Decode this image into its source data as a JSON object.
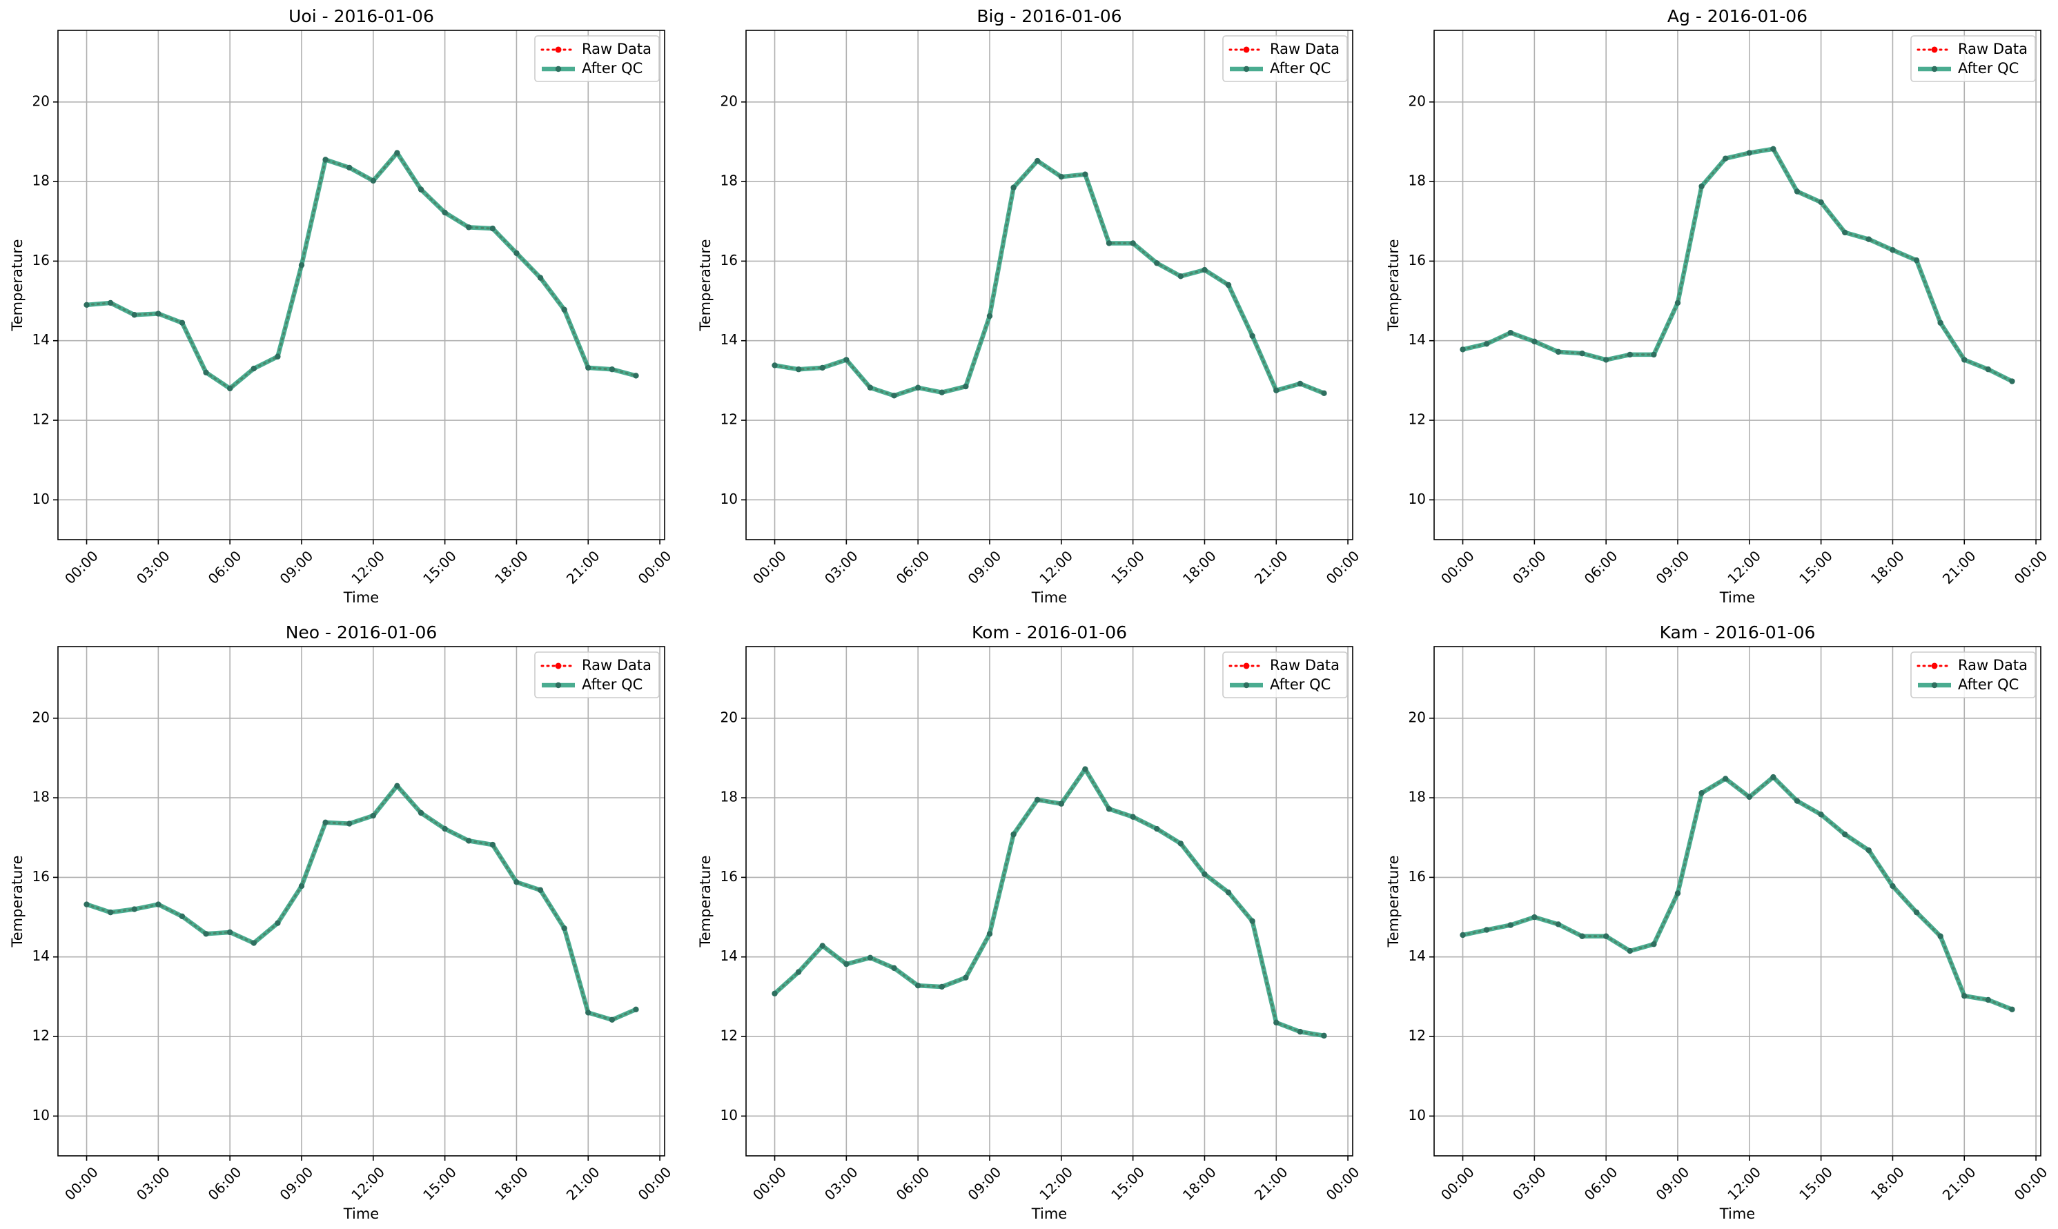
{
  "colors": {
    "raw": "#ff0000",
    "qc": "#2a9d7c",
    "qc_marker": "#2e6f5f",
    "grid": "#b0b0b0",
    "axes": "#000000",
    "legend_frame": "#cccccc"
  },
  "legend_placement": "upper right",
  "chart_data": [
    {
      "type": "line",
      "title": "Uoi - 2016-01-06",
      "xlabel": "Time",
      "ylabel": "Temperature",
      "xticks": [
        "00:00",
        "03:00",
        "06:00",
        "09:00",
        "12:00",
        "15:00",
        "18:00",
        "21:00",
        "00:00"
      ],
      "yticks": [
        "10",
        "12",
        "14",
        "16",
        "18",
        "20"
      ],
      "xlim_hours": [
        -1.2,
        24.2
      ],
      "ylim": [
        9.0,
        21.8
      ],
      "grid": true,
      "legend": [
        "Raw Data",
        "After QC"
      ],
      "x_hours": [
        0,
        1,
        2,
        3,
        4,
        5,
        6,
        7,
        8,
        9,
        10,
        11,
        12,
        13,
        14,
        15,
        16,
        17,
        18,
        19,
        20,
        21,
        22,
        23
      ],
      "series": [
        {
          "name": "Raw Data",
          "values": [
            14.9,
            14.95,
            14.65,
            14.68,
            14.45,
            13.2,
            12.8,
            13.3,
            13.6,
            15.9,
            18.55,
            18.35,
            18.02,
            18.72,
            17.8,
            17.22,
            16.85,
            16.82,
            16.2,
            15.58,
            14.78,
            13.32,
            13.28,
            13.12
          ]
        },
        {
          "name": "After QC",
          "values": [
            14.9,
            14.95,
            14.65,
            14.68,
            14.45,
            13.2,
            12.8,
            13.3,
            13.6,
            15.9,
            18.55,
            18.35,
            18.02,
            18.72,
            17.8,
            17.22,
            16.85,
            16.82,
            16.2,
            15.58,
            14.78,
            13.32,
            13.28,
            13.12
          ]
        }
      ]
    },
    {
      "type": "line",
      "title": "Big - 2016-01-06",
      "xlabel": "Time",
      "ylabel": "Temperature",
      "xticks": [
        "00:00",
        "03:00",
        "06:00",
        "09:00",
        "12:00",
        "15:00",
        "18:00",
        "21:00",
        "00:00"
      ],
      "yticks": [
        "10",
        "12",
        "14",
        "16",
        "18",
        "20"
      ],
      "xlim_hours": [
        -1.2,
        24.2
      ],
      "ylim": [
        9.0,
        21.8
      ],
      "grid": true,
      "legend": [
        "Raw Data",
        "After QC"
      ],
      "x_hours": [
        0,
        1,
        2,
        3,
        4,
        5,
        6,
        7,
        8,
        9,
        10,
        11,
        12,
        13,
        14,
        15,
        16,
        17,
        18,
        19,
        20,
        21,
        22,
        23
      ],
      "series": [
        {
          "name": "Raw Data",
          "values": [
            13.38,
            13.28,
            13.32,
            13.52,
            12.82,
            12.62,
            12.82,
            12.7,
            12.85,
            14.62,
            17.85,
            18.52,
            18.12,
            18.18,
            16.45,
            16.45,
            15.95,
            15.62,
            15.78,
            15.4,
            14.12,
            12.75,
            12.92,
            12.68
          ]
        },
        {
          "name": "After QC",
          "values": [
            13.38,
            13.28,
            13.32,
            13.52,
            12.82,
            12.62,
            12.82,
            12.7,
            12.85,
            14.62,
            17.85,
            18.52,
            18.12,
            18.18,
            16.45,
            16.45,
            15.95,
            15.62,
            15.78,
            15.4,
            14.12,
            12.75,
            12.92,
            12.68
          ]
        }
      ]
    },
    {
      "type": "line",
      "title": "Ag - 2016-01-06",
      "xlabel": "Time",
      "ylabel": "Temperature",
      "xticks": [
        "00:00",
        "03:00",
        "06:00",
        "09:00",
        "12:00",
        "15:00",
        "18:00",
        "21:00",
        "00:00"
      ],
      "yticks": [
        "10",
        "12",
        "14",
        "16",
        "18",
        "20"
      ],
      "xlim_hours": [
        -1.2,
        24.2
      ],
      "ylim": [
        9.0,
        21.8
      ],
      "grid": true,
      "legend": [
        "Raw Data",
        "After QC"
      ],
      "x_hours": [
        0,
        1,
        2,
        3,
        4,
        5,
        6,
        7,
        8,
        9,
        10,
        11,
        12,
        13,
        14,
        15,
        16,
        17,
        18,
        19,
        20,
        21,
        22,
        23
      ],
      "series": [
        {
          "name": "Raw Data",
          "values": [
            13.78,
            13.92,
            14.2,
            13.98,
            13.72,
            13.68,
            13.52,
            13.65,
            13.65,
            14.95,
            17.88,
            18.58,
            18.72,
            18.82,
            17.75,
            17.48,
            16.72,
            16.55,
            16.28,
            16.02,
            14.45,
            13.52,
            13.28,
            12.98
          ]
        },
        {
          "name": "After QC",
          "values": [
            13.78,
            13.92,
            14.2,
            13.98,
            13.72,
            13.68,
            13.52,
            13.65,
            13.65,
            14.95,
            17.88,
            18.58,
            18.72,
            18.82,
            17.75,
            17.48,
            16.72,
            16.55,
            16.28,
            16.02,
            14.45,
            13.52,
            13.28,
            12.98
          ]
        }
      ]
    },
    {
      "type": "line",
      "title": "Neo - 2016-01-06",
      "xlabel": "Time",
      "ylabel": "Temperature",
      "xticks": [
        "00:00",
        "03:00",
        "06:00",
        "09:00",
        "12:00",
        "15:00",
        "18:00",
        "21:00",
        "00:00"
      ],
      "yticks": [
        "10",
        "12",
        "14",
        "16",
        "18",
        "20"
      ],
      "xlim_hours": [
        -1.2,
        24.2
      ],
      "ylim": [
        9.0,
        21.8
      ],
      "grid": true,
      "legend": [
        "Raw Data",
        "After QC"
      ],
      "x_hours": [
        0,
        1,
        2,
        3,
        4,
        5,
        6,
        7,
        8,
        9,
        10,
        11,
        12,
        13,
        14,
        15,
        16,
        17,
        18,
        19,
        20,
        21,
        22,
        23
      ],
      "series": [
        {
          "name": "Raw Data",
          "values": [
            15.32,
            15.12,
            15.2,
            15.32,
            15.02,
            14.58,
            14.62,
            14.35,
            14.85,
            15.78,
            17.38,
            17.35,
            17.55,
            18.3,
            17.62,
            17.22,
            16.92,
            16.82,
            15.88,
            15.68,
            14.72,
            12.6,
            12.42,
            12.68
          ]
        },
        {
          "name": "After QC",
          "values": [
            15.32,
            15.12,
            15.2,
            15.32,
            15.02,
            14.58,
            14.62,
            14.35,
            14.85,
            15.78,
            17.38,
            17.35,
            17.55,
            18.3,
            17.62,
            17.22,
            16.92,
            16.82,
            15.88,
            15.68,
            14.72,
            12.6,
            12.42,
            12.68
          ]
        }
      ]
    },
    {
      "type": "line",
      "title": "Kom - 2016-01-06",
      "xlabel": "Time",
      "ylabel": "Temperature",
      "xticks": [
        "00:00",
        "03:00",
        "06:00",
        "09:00",
        "12:00",
        "15:00",
        "18:00",
        "21:00",
        "00:00"
      ],
      "yticks": [
        "10",
        "12",
        "14",
        "16",
        "18",
        "20"
      ],
      "xlim_hours": [
        -1.2,
        24.2
      ],
      "ylim": [
        9.0,
        21.8
      ],
      "grid": true,
      "legend": [
        "Raw Data",
        "After QC"
      ],
      "x_hours": [
        0,
        1,
        2,
        3,
        4,
        5,
        6,
        7,
        8,
        9,
        10,
        11,
        12,
        13,
        14,
        15,
        16,
        17,
        18,
        19,
        20,
        21,
        22,
        23
      ],
      "series": [
        {
          "name": "Raw Data",
          "values": [
            13.08,
            13.62,
            14.28,
            13.82,
            13.98,
            13.72,
            13.28,
            13.25,
            13.48,
            14.58,
            17.08,
            17.95,
            17.85,
            18.72,
            17.72,
            17.52,
            17.22,
            16.85,
            16.08,
            15.62,
            14.9,
            12.35,
            12.12,
            12.02
          ]
        },
        {
          "name": "After QC",
          "values": [
            13.08,
            13.62,
            14.28,
            13.82,
            13.98,
            13.72,
            13.28,
            13.25,
            13.48,
            14.58,
            17.08,
            17.95,
            17.85,
            18.72,
            17.72,
            17.52,
            17.22,
            16.85,
            16.08,
            15.62,
            14.9,
            12.35,
            12.12,
            12.02
          ]
        }
      ]
    },
    {
      "type": "line",
      "title": "Kam - 2016-01-06",
      "xlabel": "Time",
      "ylabel": "Temperature",
      "xticks": [
        "00:00",
        "03:00",
        "06:00",
        "09:00",
        "12:00",
        "15:00",
        "18:00",
        "21:00",
        "00:00"
      ],
      "yticks": [
        "10",
        "12",
        "14",
        "16",
        "18",
        "20"
      ],
      "xlim_hours": [
        -1.2,
        24.2
      ],
      "ylim": [
        9.0,
        21.8
      ],
      "grid": true,
      "legend": [
        "Raw Data",
        "After QC"
      ],
      "x_hours": [
        0,
        1,
        2,
        3,
        4,
        5,
        6,
        7,
        8,
        9,
        10,
        11,
        12,
        13,
        14,
        15,
        16,
        17,
        18,
        19,
        20,
        21,
        22,
        23
      ],
      "series": [
        {
          "name": "Raw Data",
          "values": [
            14.55,
            14.68,
            14.8,
            15.0,
            14.82,
            14.52,
            14.52,
            14.15,
            14.32,
            15.6,
            18.12,
            18.48,
            18.02,
            18.52,
            17.92,
            17.58,
            17.08,
            16.68,
            15.78,
            15.12,
            14.52,
            13.02,
            12.92,
            12.68
          ]
        },
        {
          "name": "After QC",
          "values": [
            14.55,
            14.68,
            14.8,
            15.0,
            14.82,
            14.52,
            14.52,
            14.15,
            14.32,
            15.6,
            18.12,
            18.48,
            18.02,
            18.52,
            17.92,
            17.58,
            17.08,
            16.68,
            15.78,
            15.12,
            14.52,
            13.02,
            12.92,
            12.68
          ]
        }
      ]
    }
  ]
}
